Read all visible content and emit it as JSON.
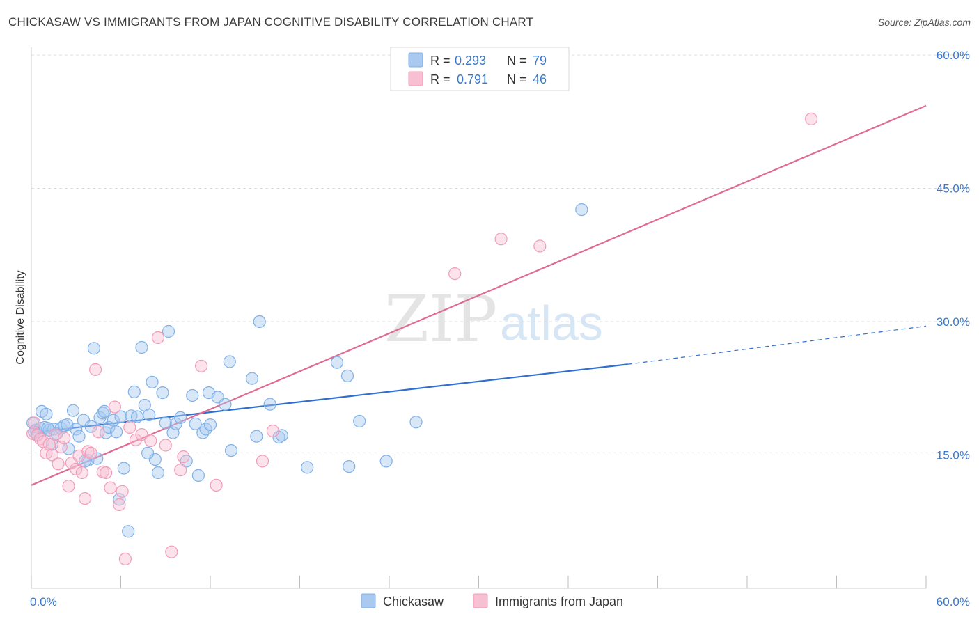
{
  "title": "CHICKASAW VS IMMIGRANTS FROM JAPAN COGNITIVE DISABILITY CORRELATION CHART",
  "source": "Source: ZipAtlas.com",
  "watermark": {
    "zip": "ZIP",
    "atlas": "atlas"
  },
  "chart_data": {
    "type": "scatter",
    "ylabel": "Cognitive Disability",
    "xlabel": "",
    "xlim": [
      0,
      60
    ],
    "ylim": [
      0,
      60
    ],
    "x_tick_labels": [
      "0.0%",
      "60.0%"
    ],
    "y_ticks": [
      15,
      30,
      45,
      60
    ],
    "y_tick_labels": [
      "15.0%",
      "30.0%",
      "45.0%",
      "60.0%"
    ],
    "legend": {
      "r_label": "R =",
      "n_label": "N =",
      "entries": [
        {
          "r": "0.293",
          "n": "79"
        },
        {
          "r": "0.791",
          "n": "46"
        }
      ]
    },
    "series": [
      {
        "name": "Chickasaw",
        "color": "#7fb0e8",
        "fill": "#a9c9f0",
        "line_color": "#2e6fcf",
        "trend": {
          "x0": 0,
          "y0": 17.5,
          "x1": 40,
          "y1": 25.2,
          "x_ext": 60,
          "y_ext": 29.5
        },
        "points": [
          [
            0.1,
            18.6
          ],
          [
            0.3,
            17.8
          ],
          [
            0.4,
            17.3
          ],
          [
            0.6,
            18.0
          ],
          [
            0.7,
            19.9
          ],
          [
            0.9,
            18.1
          ],
          [
            1.0,
            19.6
          ],
          [
            1.2,
            17.8
          ],
          [
            1.4,
            16.2
          ],
          [
            1.5,
            17.9
          ],
          [
            1.7,
            17.4
          ],
          [
            2.0,
            18.0
          ],
          [
            2.2,
            18.3
          ],
          [
            2.5,
            15.7
          ],
          [
            2.8,
            20.0
          ],
          [
            3.0,
            17.9
          ],
          [
            3.2,
            17.1
          ],
          [
            3.5,
            18.9
          ],
          [
            3.8,
            14.4
          ],
          [
            4.0,
            18.2
          ],
          [
            4.2,
            27.0
          ],
          [
            4.4,
            14.6
          ],
          [
            4.6,
            19.2
          ],
          [
            4.8,
            19.7
          ],
          [
            5.0,
            17.5
          ],
          [
            5.2,
            18.1
          ],
          [
            5.5,
            18.9
          ],
          [
            5.7,
            17.6
          ],
          [
            6.0,
            19.3
          ],
          [
            6.2,
            13.5
          ],
          [
            6.5,
            6.4
          ],
          [
            6.7,
            19.4
          ],
          [
            6.9,
            22.1
          ],
          [
            7.1,
            19.3
          ],
          [
            7.4,
            27.1
          ],
          [
            7.6,
            20.6
          ],
          [
            7.9,
            19.5
          ],
          [
            8.1,
            23.2
          ],
          [
            8.3,
            14.5
          ],
          [
            8.5,
            13.0
          ],
          [
            8.8,
            22.0
          ],
          [
            9.0,
            18.6
          ],
          [
            9.2,
            28.9
          ],
          [
            9.5,
            17.5
          ],
          [
            9.7,
            18.5
          ],
          [
            10.0,
            19.2
          ],
          [
            10.4,
            14.3
          ],
          [
            10.8,
            21.7
          ],
          [
            11.0,
            18.5
          ],
          [
            11.2,
            12.7
          ],
          [
            11.5,
            17.5
          ],
          [
            11.7,
            17.9
          ],
          [
            11.9,
            22.0
          ],
          [
            12.0,
            18.4
          ],
          [
            12.5,
            21.5
          ],
          [
            13.0,
            20.7
          ],
          [
            13.3,
            25.5
          ],
          [
            13.4,
            15.5
          ],
          [
            14.8,
            23.6
          ],
          [
            15.1,
            17.1
          ],
          [
            15.3,
            30.0
          ],
          [
            16.0,
            20.7
          ],
          [
            16.6,
            17.0
          ],
          [
            16.8,
            17.2
          ],
          [
            18.5,
            13.6
          ],
          [
            20.5,
            25.4
          ],
          [
            21.2,
            23.9
          ],
          [
            21.3,
            13.7
          ],
          [
            22.0,
            18.8
          ],
          [
            23.8,
            14.3
          ],
          [
            25.8,
            18.7
          ],
          [
            36.9,
            42.6
          ],
          [
            7.8,
            15.2
          ],
          [
            5.9,
            10.0
          ],
          [
            3.6,
            14.3
          ],
          [
            2.4,
            18.4
          ],
          [
            1.1,
            18.0
          ],
          [
            0.2,
            17.6
          ],
          [
            4.9,
            19.9
          ]
        ]
      },
      {
        "name": "Immigrants from Japan",
        "color": "#f29bb8",
        "fill": "#f7bfd2",
        "line_color": "#e06a92",
        "trend": {
          "x0": 0,
          "y0": 11.6,
          "x1": 60,
          "y1": 54.3
        },
        "points": [
          [
            0.1,
            17.4
          ],
          [
            0.2,
            18.6
          ],
          [
            0.4,
            17.2
          ],
          [
            0.6,
            16.8
          ],
          [
            0.8,
            16.5
          ],
          [
            1.0,
            15.2
          ],
          [
            1.2,
            16.2
          ],
          [
            1.4,
            15.0
          ],
          [
            1.6,
            17.3
          ],
          [
            1.8,
            14.0
          ],
          [
            2.0,
            15.9
          ],
          [
            2.2,
            16.9
          ],
          [
            2.5,
            11.5
          ],
          [
            2.7,
            14.1
          ],
          [
            3.0,
            13.4
          ],
          [
            3.2,
            14.9
          ],
          [
            3.4,
            13.0
          ],
          [
            3.6,
            10.1
          ],
          [
            3.8,
            15.4
          ],
          [
            4.0,
            15.2
          ],
          [
            4.3,
            24.6
          ],
          [
            4.5,
            17.6
          ],
          [
            4.8,
            13.1
          ],
          [
            5.0,
            13.0
          ],
          [
            5.3,
            11.3
          ],
          [
            5.6,
            20.4
          ],
          [
            5.9,
            9.4
          ],
          [
            6.1,
            10.9
          ],
          [
            6.3,
            3.3
          ],
          [
            6.6,
            18.1
          ],
          [
            7.0,
            16.7
          ],
          [
            7.4,
            17.3
          ],
          [
            8.0,
            16.6
          ],
          [
            8.5,
            28.2
          ],
          [
            9.0,
            16.1
          ],
          [
            9.4,
            4.1
          ],
          [
            10.0,
            13.3
          ],
          [
            10.2,
            14.8
          ],
          [
            11.4,
            25.0
          ],
          [
            12.4,
            11.6
          ],
          [
            15.5,
            14.3
          ],
          [
            16.2,
            17.7
          ],
          [
            28.4,
            35.4
          ],
          [
            31.5,
            39.3
          ],
          [
            34.1,
            38.5
          ],
          [
            52.3,
            52.8
          ]
        ]
      }
    ]
  }
}
